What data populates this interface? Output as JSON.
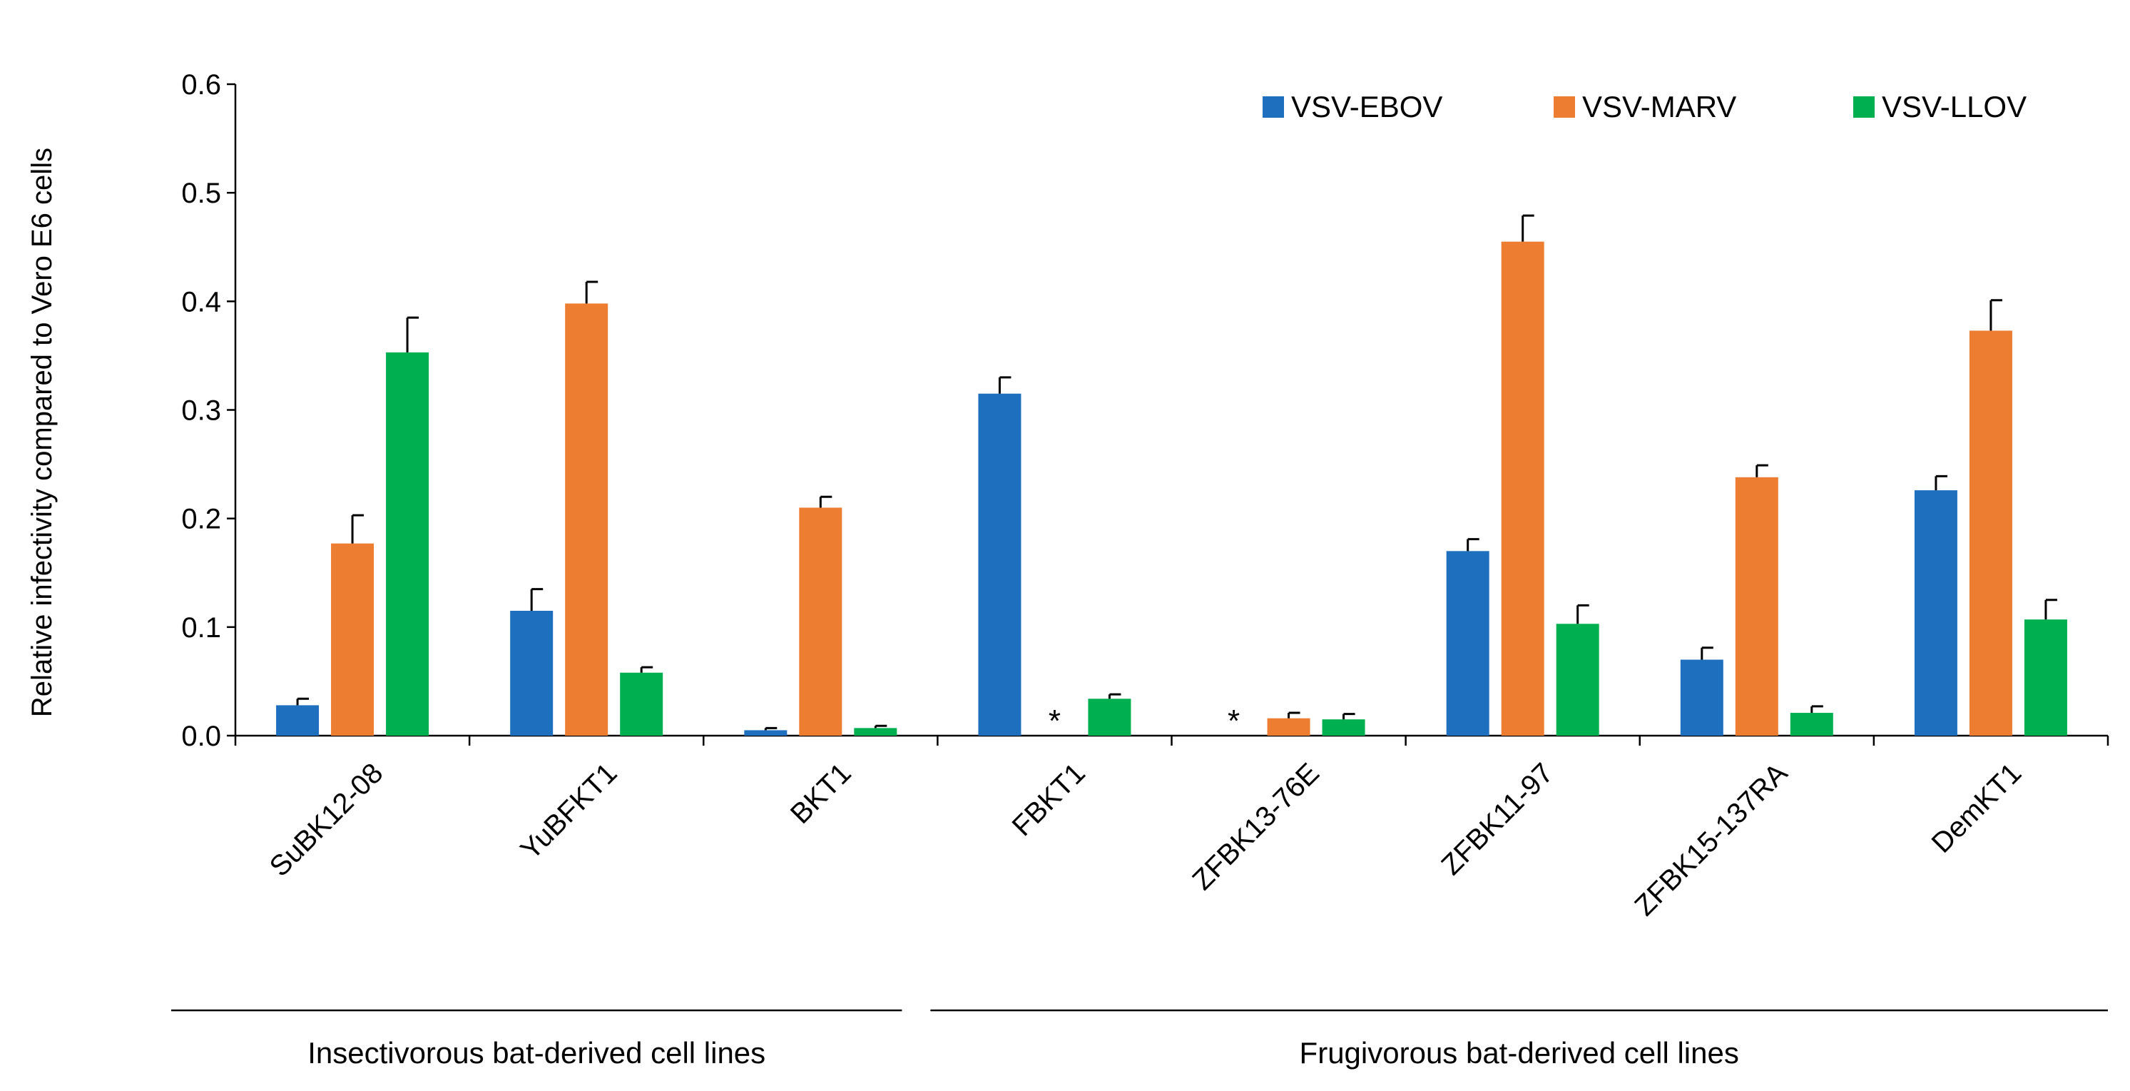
{
  "chart_data": {
    "type": "bar",
    "title": "",
    "ylabel": "Relative infectivity compared to Vero E6 cells",
    "xlabel": "",
    "ylim": [
      0,
      0.6
    ],
    "yticks": [
      0.0,
      0.1,
      0.2,
      0.3,
      0.4,
      0.5,
      0.6
    ],
    "ytick_labels": [
      "0.0",
      "0.1",
      "0.2",
      "0.3",
      "0.4",
      "0.5",
      "0.6"
    ],
    "categories": [
      "SuBK12-08",
      "YuBFKT1",
      "BKT1",
      "FBKT1",
      "ZFBK13-76E",
      "ZFBK11-97",
      "ZFBK15-137RA",
      "DemKT1"
    ],
    "series": [
      {
        "name": "VSV-EBOV",
        "color": "#1f6fbf",
        "values": [
          0.028,
          0.115,
          0.005,
          0.315,
          0.0,
          0.17,
          0.07,
          0.226
        ],
        "errors": [
          0.006,
          0.02,
          0.002,
          0.015,
          0.0,
          0.011,
          0.011,
          0.013
        ]
      },
      {
        "name": "VSV-MARV",
        "color": "#ed7d31",
        "values": [
          0.177,
          0.398,
          0.21,
          0.0,
          0.016,
          0.455,
          0.238,
          0.373
        ],
        "errors": [
          0.026,
          0.02,
          0.01,
          0.0,
          0.005,
          0.024,
          0.011,
          0.028
        ]
      },
      {
        "name": "VSV-LLOV",
        "color": "#00b050",
        "values": [
          0.353,
          0.058,
          0.007,
          0.034,
          0.015,
          0.103,
          0.021,
          0.107
        ],
        "errors": [
          0.032,
          0.005,
          0.002,
          0.004,
          0.005,
          0.017,
          0.006,
          0.018
        ]
      }
    ],
    "annotations": [
      {
        "category": "FBKT1",
        "series": "VSV-MARV",
        "text": "*"
      },
      {
        "category": "ZFBK13-76E",
        "series": "VSV-EBOV",
        "text": "*"
      }
    ],
    "groups": [
      {
        "label": "Insectivorous bat-derived cell lines",
        "categories": [
          "SuBK12-08",
          "YuBFKT1",
          "BKT1"
        ]
      },
      {
        "label": "Frugivorous bat-derived cell lines",
        "categories": [
          "FBKT1",
          "ZFBK13-76E",
          "ZFBK11-97",
          "ZFBK15-137RA",
          "DemKT1"
        ]
      }
    ],
    "legend_position": "top-right"
  }
}
